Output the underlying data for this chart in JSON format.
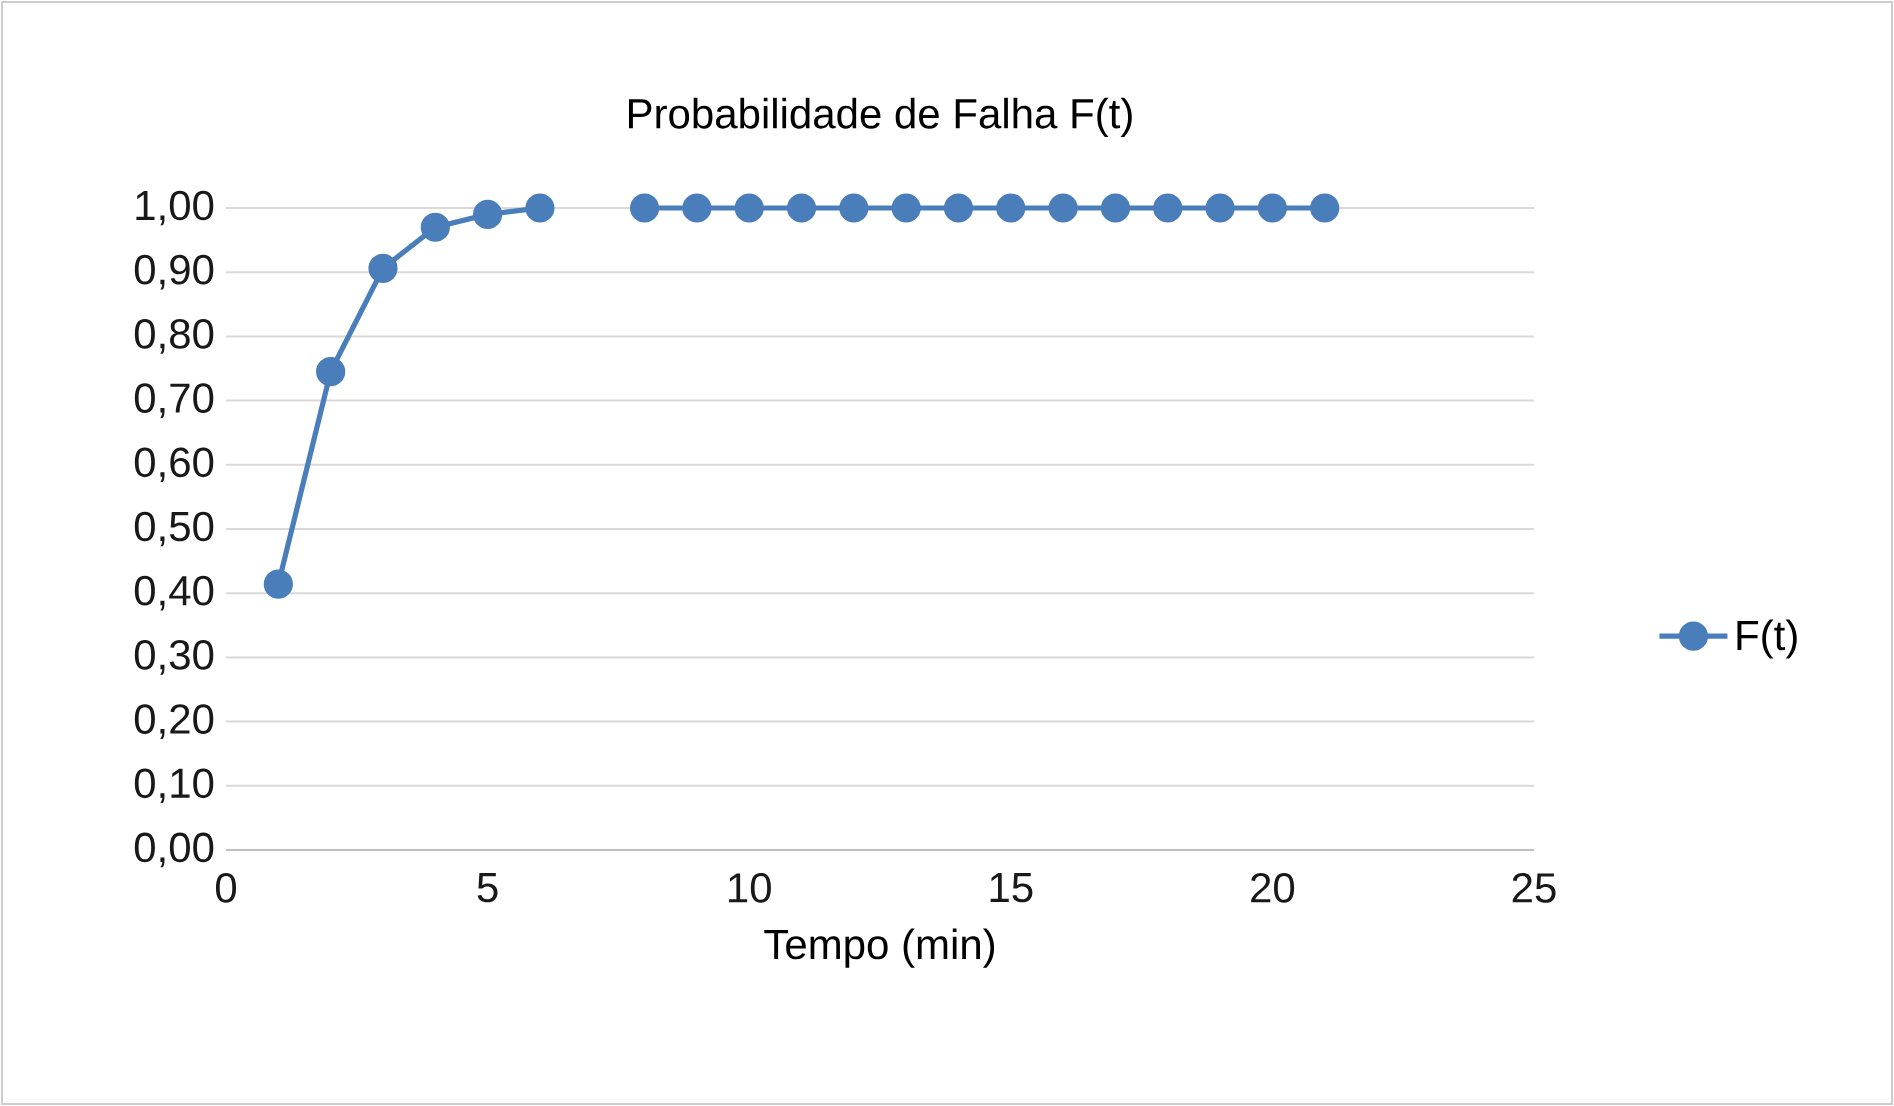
{
  "chart_data": {
    "type": "line",
    "title": "Probabilidade de Falha F(t)",
    "xlabel": "Tempo (min)",
    "x": [
      1,
      2,
      3,
      4,
      5,
      6,
      7,
      8,
      9,
      10,
      11,
      12,
      13,
      14,
      15,
      16,
      17,
      18,
      19,
      20,
      21
    ],
    "series": [
      {
        "name": "F(t)",
        "color": "#4a7ebb",
        "values": [
          0.414,
          0.745,
          0.906,
          0.97,
          0.99,
          1.0,
          null,
          1.0,
          1.0,
          1.0,
          1.0,
          1.0,
          1.0,
          1.0,
          1.0,
          1.0,
          1.0,
          1.0,
          1.0,
          1.0,
          1.0
        ]
      }
    ],
    "xlim": [
      0,
      25
    ],
    "xticks": [
      0,
      5,
      10,
      15,
      20,
      25
    ],
    "ylim": [
      0,
      1
    ],
    "yticks": [
      {
        "value": 0,
        "label": "0,00"
      },
      {
        "value": 0.1,
        "label": "0,10"
      },
      {
        "value": 0.2,
        "label": "0,20"
      },
      {
        "value": 0.3,
        "label": "0,30"
      },
      {
        "value": 0.4,
        "label": "0,40"
      },
      {
        "value": 0.5,
        "label": "0,50"
      },
      {
        "value": 0.6,
        "label": "0,60"
      },
      {
        "value": 0.7,
        "label": "0,70"
      },
      {
        "value": 0.8,
        "label": "0,80"
      },
      {
        "value": 0.9,
        "label": "0,90"
      },
      {
        "value": 1,
        "label": "1,00"
      }
    ],
    "grid": "y",
    "legend": "right",
    "marker": "circle",
    "line_style": "solid"
  }
}
